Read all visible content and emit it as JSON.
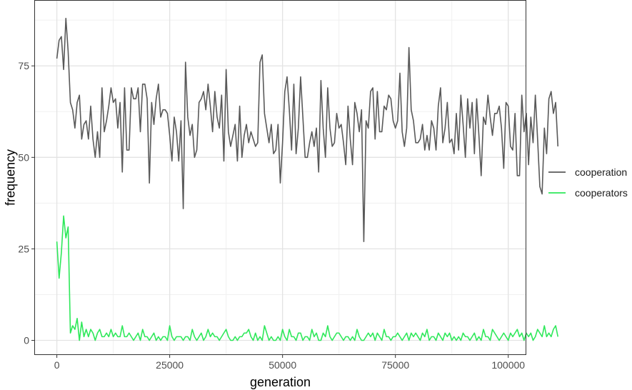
{
  "chart_data": {
    "type": "line",
    "title": "",
    "xlabel": "generation",
    "ylabel": "frequency",
    "xlim": [
      -5000,
      104000
    ],
    "ylim": [
      -4,
      93
    ],
    "xticks": [
      0,
      25000,
      50000,
      75000,
      100000
    ],
    "xtick_labels": [
      "0",
      "25000",
      "50000",
      "75000",
      "100000"
    ],
    "yticks": [
      0,
      25,
      50,
      75
    ],
    "ytick_labels": [
      "0",
      "25",
      "50",
      "75"
    ],
    "grid": true,
    "legend_position": "right",
    "x_start": 0,
    "x_step": 500,
    "series": [
      {
        "name": "cooperation",
        "color": "#595959",
        "values": [
          77,
          82,
          83,
          74,
          88,
          79,
          65,
          63,
          58,
          65,
          67,
          55,
          59,
          60,
          55,
          64,
          55,
          50,
          57,
          50,
          69,
          57,
          60,
          64,
          69,
          65,
          66,
          58,
          65,
          46,
          69,
          52,
          52,
          69,
          66,
          66,
          69,
          57,
          70,
          70,
          66,
          43,
          65,
          59,
          66,
          70,
          61,
          63,
          63,
          62,
          56,
          49,
          61,
          57,
          49,
          60,
          36,
          76,
          61,
          56,
          59,
          50,
          52,
          65,
          66,
          68,
          63,
          70,
          64,
          57,
          68,
          61,
          58,
          67,
          49,
          74,
          57,
          53,
          56,
          59,
          49,
          64,
          50,
          56,
          59,
          54,
          57,
          55,
          53,
          54,
          76,
          78,
          62,
          58,
          54,
          59,
          51,
          52,
          59,
          43,
          54,
          68,
          72,
          63,
          52,
          70,
          51,
          58,
          72,
          61,
          50,
          50,
          54,
          57,
          53,
          58,
          46,
          71,
          58,
          50,
          69,
          58,
          53,
          54,
          62,
          58,
          59,
          54,
          48,
          64,
          55,
          48,
          65,
          62,
          57,
          63,
          27,
          60,
          58,
          68,
          69,
          55,
          68,
          57,
          57,
          64,
          63,
          67,
          66,
          60,
          58,
          60,
          73,
          57,
          53,
          58,
          80,
          63,
          60,
          54,
          54,
          55,
          59,
          52,
          56,
          52,
          60,
          58,
          52,
          64,
          69,
          54,
          58,
          65,
          54,
          55,
          51,
          62,
          52,
          67,
          59,
          50,
          66,
          58,
          65,
          51,
          66,
          56,
          45,
          61,
          59,
          67,
          61,
          56,
          62,
          62,
          64,
          58,
          47,
          65,
          64,
          53,
          52,
          62,
          45,
          45,
          67,
          57,
          62,
          48,
          61,
          54,
          67,
          55,
          42,
          40,
          58,
          51,
          66,
          68,
          62,
          65,
          53
        ]
      },
      {
        "name": "cooperators",
        "color": "#2ee85a",
        "values": [
          27,
          17,
          24,
          34,
          28,
          31,
          2,
          4,
          3,
          6,
          0,
          5,
          1,
          3,
          1,
          3,
          2,
          0,
          2,
          3,
          1,
          1,
          2,
          1,
          3,
          1,
          2,
          1,
          1,
          4,
          1,
          1,
          2,
          1,
          0,
          1,
          2,
          0,
          3,
          1,
          1,
          0,
          1,
          2,
          0,
          1,
          0,
          1,
          1,
          0,
          4,
          1,
          0,
          1,
          1,
          1,
          0,
          1,
          1,
          0,
          3,
          1,
          0,
          1,
          2,
          0,
          1,
          3,
          1,
          2,
          1,
          1,
          0,
          1,
          2,
          3,
          1,
          0,
          0,
          1,
          0,
          1,
          1,
          2,
          2,
          3,
          1,
          0,
          2,
          0,
          1,
          0,
          4,
          2,
          0,
          1,
          0,
          0,
          1,
          0,
          3,
          1,
          0,
          3,
          1,
          1,
          0,
          2,
          2,
          0,
          1,
          1,
          0,
          3,
          1,
          2,
          0,
          0,
          2,
          1,
          4,
          1,
          0,
          1,
          2,
          2,
          1,
          0,
          1,
          1,
          0,
          1,
          0,
          3,
          1,
          0,
          0,
          1,
          2,
          1,
          2,
          0,
          2,
          1,
          0,
          3,
          1,
          1,
          0,
          1,
          1,
          2,
          1,
          0,
          1,
          2,
          0,
          2,
          1,
          2,
          1,
          0,
          2,
          1,
          3,
          0,
          1,
          1,
          0,
          2,
          1,
          0,
          2,
          1,
          2,
          0,
          1,
          0,
          1,
          0,
          2,
          1,
          1,
          0,
          1,
          2,
          0,
          1,
          0,
          3,
          1,
          1,
          0,
          3,
          2,
          1,
          0,
          1,
          2,
          1,
          0,
          2,
          1,
          2,
          3,
          1,
          2,
          0,
          2,
          1,
          2,
          0,
          1,
          3,
          2,
          1,
          4,
          1,
          2,
          1,
          3,
          4,
          1
        ]
      }
    ]
  }
}
